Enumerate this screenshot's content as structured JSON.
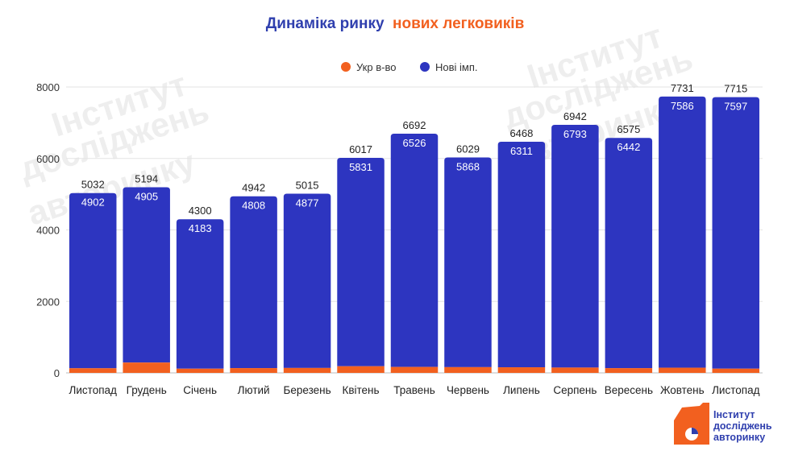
{
  "chart_data": {
    "type": "bar",
    "stacked": true,
    "title_part1": "Динаміка ринку",
    "title_part2": "нових легковиків",
    "categories": [
      "Листопад",
      "Грудень",
      "Січень",
      "Лютий",
      "Березень",
      "Квітень",
      "Травень",
      "Червень",
      "Липень",
      "Серпень",
      "Вересень",
      "Жовтень",
      "Листопад"
    ],
    "series": [
      {
        "name": "Укр в-во",
        "color": "#f2601f",
        "values": [
          130,
          289,
          117,
          134,
          138,
          186,
          166,
          161,
          157,
          149,
          133,
          145,
          118
        ]
      },
      {
        "name": "Нові імп.",
        "color": "#2d35c0",
        "values": [
          4902,
          4905,
          4183,
          4808,
          4877,
          5831,
          6526,
          5868,
          6311,
          6793,
          6442,
          7586,
          7597
        ]
      }
    ],
    "totals": [
      5032,
      5194,
      4300,
      4942,
      5015,
      6017,
      6692,
      6029,
      6468,
      6942,
      6575,
      7731,
      7715
    ],
    "yticks": [
      0,
      2000,
      4000,
      6000,
      8000
    ],
    "ylim": [
      0,
      8000
    ],
    "xlabel": "",
    "ylabel": "",
    "grid": true,
    "legend_position": "top-center"
  },
  "logo": {
    "line1": "Інститут",
    "line2": "досліджень",
    "line3": "авторинку",
    "color": "#f2601f",
    "text_color": "#2f3fae"
  }
}
